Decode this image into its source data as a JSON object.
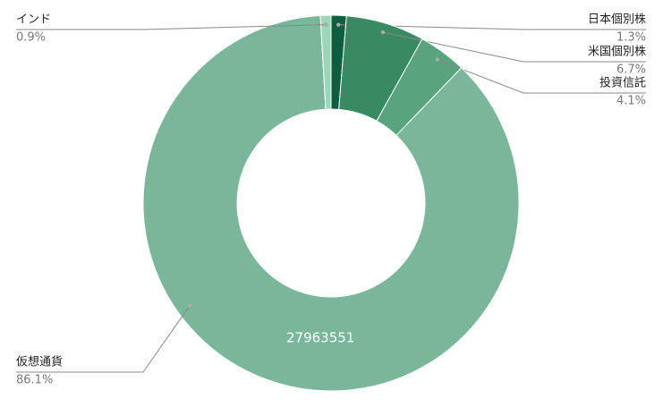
{
  "chart_data": {
    "type": "donut",
    "categories": [
      "日本個別株",
      "米国個別株",
      "投資信託",
      "仮想通貨",
      "インド"
    ],
    "values": [
      1.3,
      6.7,
      4.1,
      86.1,
      0.9
    ],
    "value_labels": [
      "1.3%",
      "6.7%",
      "4.1%",
      "86.1%",
      "0.9%"
    ],
    "colors": [
      "#0f5e3f",
      "#388a63",
      "#5aa37f",
      "#79b69a",
      "#9ed4b8"
    ],
    "annotation": "27963551"
  }
}
